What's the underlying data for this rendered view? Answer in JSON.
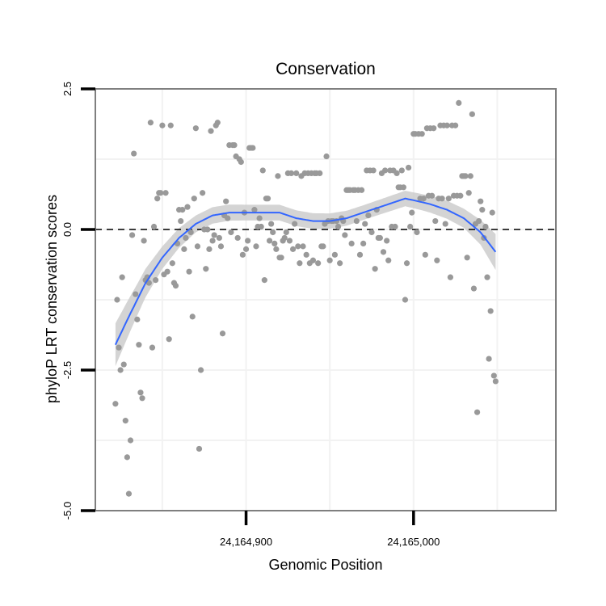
{
  "chart_data": {
    "type": "scatter",
    "title": "Conservation",
    "xlabel": "Genomic Position",
    "ylabel": "phyloP LRT conservation scores",
    "xlim": [
      24164810,
      24165085
    ],
    "ylim": [
      -5.0,
      2.5
    ],
    "xticks": [
      24164900,
      24165000
    ],
    "xtick_labels": [
      "24,164,900",
      "24,165,000"
    ],
    "yticks": [
      2.5,
      0.0,
      -2.5,
      -5.0
    ],
    "ytick_labels": [
      "2.5",
      "0.0",
      "-2.5",
      "-5.0"
    ],
    "grid": true,
    "reference_line": {
      "y": 0.0,
      "style": "dashed"
    },
    "colors": {
      "points": "#999999",
      "smooth": "#3366ff",
      "band": "#cccccc",
      "panel_border": "#7f7f7f"
    },
    "points": [
      [
        24164822,
        -3.1
      ],
      [
        24164823,
        -1.25
      ],
      [
        24164824,
        -2.1
      ],
      [
        24164825,
        -2.5
      ],
      [
        24164826,
        -0.85
      ],
      [
        24164827,
        -2.4
      ],
      [
        24164828,
        -3.4
      ],
      [
        24164829,
        -4.05
      ],
      [
        24164830,
        -4.7
      ],
      [
        24164831,
        -3.75
      ],
      [
        24164832,
        -0.1
      ],
      [
        24164833,
        1.35
      ],
      [
        24164834,
        -1.15
      ],
      [
        24164835,
        -1.6
      ],
      [
        24164836,
        -2.05
      ],
      [
        24164837,
        -2.9
      ],
      [
        24164838,
        -3.0
      ],
      [
        24164839,
        -0.2
      ],
      [
        24164840,
        -0.9
      ],
      [
        24164841,
        -0.85
      ],
      [
        24164842,
        -0.95
      ],
      [
        24164843,
        1.9
      ],
      [
        24164844,
        -2.1
      ],
      [
        24164845,
        0.05
      ],
      [
        24164846,
        -0.9
      ],
      [
        24164847,
        0.55
      ],
      [
        24164848,
        0.65
      ],
      [
        24164849,
        0.65
      ],
      [
        24164850,
        1.85
      ],
      [
        24164851,
        -0.8
      ],
      [
        24164852,
        0.65
      ],
      [
        24164853,
        -0.75
      ],
      [
        24164854,
        -1.95
      ],
      [
        24164855,
        1.85
      ],
      [
        24164856,
        -0.6
      ],
      [
        24164857,
        -0.95
      ],
      [
        24164858,
        -1.0
      ],
      [
        24164859,
        -0.25
      ],
      [
        24164860,
        0.35
      ],
      [
        24164861,
        0.15
      ],
      [
        24164862,
        0.35
      ],
      [
        24164863,
        -0.35
      ],
      [
        24164864,
        -0.15
      ],
      [
        24164865,
        0.4
      ],
      [
        24164866,
        -0.75
      ],
      [
        24164867,
        -0.05
      ],
      [
        24164868,
        -1.55
      ],
      [
        24164869,
        0.55
      ],
      [
        24164870,
        1.8
      ],
      [
        24164871,
        -0.3
      ],
      [
        24164872,
        -3.9
      ],
      [
        24164873,
        -2.5
      ],
      [
        24164874,
        0.65
      ],
      [
        24164875,
        0.0
      ],
      [
        24164876,
        -0.7
      ],
      [
        24164877,
        0.0
      ],
      [
        24164878,
        -0.35
      ],
      [
        24164879,
        1.75
      ],
      [
        24164880,
        -0.2
      ],
      [
        24164881,
        -0.1
      ],
      [
        24164882,
        1.85
      ],
      [
        24164883,
        1.9
      ],
      [
        24164884,
        -0.15
      ],
      [
        24164885,
        -0.3
      ],
      [
        24164886,
        -1.85
      ],
      [
        24164887,
        0.25
      ],
      [
        24164888,
        0.5
      ],
      [
        24164889,
        0.2
      ],
      [
        24164890,
        1.5
      ],
      [
        24164891,
        -0.05
      ],
      [
        24164892,
        1.5
      ],
      [
        24164893,
        1.5
      ],
      [
        24164894,
        1.3
      ],
      [
        24164895,
        -0.15
      ],
      [
        24164896,
        1.25
      ],
      [
        24164897,
        1.2
      ],
      [
        24164898,
        -0.45
      ],
      [
        24164899,
        0.3
      ],
      [
        24164900,
        -0.35
      ],
      [
        24164901,
        -0.2
      ],
      [
        24164902,
        1.45
      ],
      [
        24164903,
        1.45
      ],
      [
        24164904,
        1.45
      ],
      [
        24164905,
        0.35
      ],
      [
        24164906,
        -0.3
      ],
      [
        24164907,
        0.05
      ],
      [
        24164908,
        0.2
      ],
      [
        24164909,
        0.05
      ],
      [
        24164910,
        1.05
      ],
      [
        24164911,
        -0.9
      ],
      [
        24164912,
        0.55
      ],
      [
        24164913,
        0.55
      ],
      [
        24164914,
        -0.2
      ],
      [
        24164915,
        0.1
      ],
      [
        24164916,
        -0.05
      ],
      [
        24164917,
        -0.25
      ],
      [
        24164918,
        -0.35
      ],
      [
        24164919,
        0.95
      ],
      [
        24164920,
        -0.5
      ],
      [
        24164921,
        -0.5
      ],
      [
        24164922,
        -0.2
      ],
      [
        24164923,
        -0.15
      ],
      [
        24164924,
        -0.05
      ],
      [
        24164925,
        1.0
      ],
      [
        24164926,
        -0.2
      ],
      [
        24164927,
        1.0
      ],
      [
        24164928,
        -0.35
      ],
      [
        24164929,
        0.1
      ],
      [
        24164930,
        1.0
      ],
      [
        24164931,
        -0.3
      ],
      [
        24164932,
        -0.6
      ],
      [
        24164933,
        0.95
      ],
      [
        24164934,
        -0.3
      ],
      [
        24164935,
        1.0
      ],
      [
        24164936,
        -0.45
      ],
      [
        24164937,
        1.0
      ],
      [
        24164938,
        -0.6
      ],
      [
        24164939,
        1.0
      ],
      [
        24164940,
        -0.55
      ],
      [
        24164941,
        1.0
      ],
      [
        24164942,
        1.0
      ],
      [
        24164943,
        -0.6
      ],
      [
        24164944,
        1.0
      ],
      [
        24164945,
        -0.3
      ],
      [
        24164946,
        -0.3
      ],
      [
        24164947,
        0.1
      ],
      [
        24164948,
        1.3
      ],
      [
        24164949,
        0.15
      ],
      [
        24164950,
        -0.55
      ],
      [
        24164951,
        0.15
      ],
      [
        24164952,
        0.15
      ],
      [
        24164953,
        -0.45
      ],
      [
        24164954,
        0.15
      ],
      [
        24164955,
        0.05
      ],
      [
        24164956,
        -0.6
      ],
      [
        24164957,
        0.2
      ],
      [
        24164958,
        0.15
      ],
      [
        24164959,
        -0.1
      ],
      [
        24164960,
        0.7
      ],
      [
        24164961,
        0.7
      ],
      [
        24164962,
        0.7
      ],
      [
        24164963,
        -0.25
      ],
      [
        24164964,
        0.7
      ],
      [
        24164965,
        0.7
      ],
      [
        24164966,
        0.15
      ],
      [
        24164967,
        0.7
      ],
      [
        24164968,
        -0.45
      ],
      [
        24164969,
        0.7
      ],
      [
        24164970,
        -0.25
      ],
      [
        24164971,
        0.1
      ],
      [
        24164972,
        1.05
      ],
      [
        24164973,
        0.25
      ],
      [
        24164974,
        1.05
      ],
      [
        24164975,
        -0.05
      ],
      [
        24164976,
        1.05
      ],
      [
        24164977,
        -0.7
      ],
      [
        24164978,
        0.35
      ],
      [
        24164979,
        -0.15
      ],
      [
        24164980,
        -0.15
      ],
      [
        24164981,
        1.0
      ],
      [
        24164982,
        -0.4
      ],
      [
        24164983,
        1.05
      ],
      [
        24164984,
        -0.2
      ],
      [
        24164985,
        -0.55
      ],
      [
        24164986,
        1.05
      ],
      [
        24164987,
        0.05
      ],
      [
        24164988,
        1.05
      ],
      [
        24164989,
        0.05
      ],
      [
        24164990,
        1.0
      ],
      [
        24164991,
        0.75
      ],
      [
        24164992,
        0.75
      ],
      [
        24164993,
        1.05
      ],
      [
        24164994,
        0.75
      ],
      [
        24164995,
        -1.25
      ],
      [
        24164996,
        -0.6
      ],
      [
        24164997,
        1.1
      ],
      [
        24164998,
        0.05
      ],
      [
        24164999,
        0.3
      ],
      [
        24165000,
        1.7
      ],
      [
        24165001,
        1.7
      ],
      [
        24165002,
        -0.05
      ],
      [
        24165003,
        1.7
      ],
      [
        24165004,
        0.55
      ],
      [
        24165005,
        1.7
      ],
      [
        24165006,
        0.55
      ],
      [
        24165007,
        -0.45
      ],
      [
        24165008,
        1.8
      ],
      [
        24165009,
        0.6
      ],
      [
        24165010,
        1.8
      ],
      [
        24165011,
        0.6
      ],
      [
        24165012,
        1.8
      ],
      [
        24165013,
        0.15
      ],
      [
        24165014,
        -0.55
      ],
      [
        24165015,
        0.55
      ],
      [
        24165016,
        1.85
      ],
      [
        24165017,
        0.55
      ],
      [
        24165018,
        1.85
      ],
      [
        24165019,
        0.1
      ],
      [
        24165020,
        1.85
      ],
      [
        24165021,
        0.55
      ],
      [
        24165022,
        -0.85
      ],
      [
        24165023,
        1.85
      ],
      [
        24165024,
        0.6
      ],
      [
        24165025,
        1.85
      ],
      [
        24165026,
        0.6
      ],
      [
        24165027,
        2.25
      ],
      [
        24165028,
        0.6
      ],
      [
        24165029,
        0.95
      ],
      [
        24165030,
        0.95
      ],
      [
        24165031,
        0.95
      ],
      [
        24165032,
        -0.5
      ],
      [
        24165033,
        0.65
      ],
      [
        24165034,
        0.95
      ],
      [
        24165035,
        2.05
      ],
      [
        24165036,
        -1.05
      ],
      [
        24165037,
        0.1
      ],
      [
        24165038,
        -3.25
      ],
      [
        24165039,
        0.15
      ],
      [
        24165040,
        0.5
      ],
      [
        24165041,
        0.35
      ],
      [
        24165042,
        -0.15
      ],
      [
        24165043,
        0.05
      ],
      [
        24165044,
        -0.85
      ],
      [
        24165045,
        -2.3
      ],
      [
        24165046,
        -1.45
      ],
      [
        24165047,
        0.3
      ],
      [
        24165048,
        -2.6
      ],
      [
        24165049,
        -2.7
      ]
    ],
    "smooth": [
      [
        24164822,
        -2.05
      ],
      [
        24164830,
        -1.55
      ],
      [
        24164840,
        -0.95
      ],
      [
        24164850,
        -0.5
      ],
      [
        24164860,
        -0.15
      ],
      [
        24164870,
        0.1
      ],
      [
        24164880,
        0.25
      ],
      [
        24164890,
        0.3
      ],
      [
        24164900,
        0.3
      ],
      [
        24164910,
        0.3
      ],
      [
        24164920,
        0.3
      ],
      [
        24164930,
        0.2
      ],
      [
        24164940,
        0.15
      ],
      [
        24164950,
        0.15
      ],
      [
        24164960,
        0.2
      ],
      [
        24164970,
        0.3
      ],
      [
        24164980,
        0.4
      ],
      [
        24164990,
        0.5
      ],
      [
        24164995,
        0.55
      ],
      [
        24165000,
        0.52
      ],
      [
        24165010,
        0.45
      ],
      [
        24165020,
        0.35
      ],
      [
        24165030,
        0.2
      ],
      [
        24165040,
        -0.05
      ],
      [
        24165049,
        -0.4
      ]
    ],
    "band_width": [
      [
        24164822,
        0.38
      ],
      [
        24164835,
        0.28
      ],
      [
        24164850,
        0.2
      ],
      [
        24164870,
        0.15
      ],
      [
        24164900,
        0.14
      ],
      [
        24164935,
        0.14
      ],
      [
        24164970,
        0.13
      ],
      [
        24165000,
        0.14
      ],
      [
        24165030,
        0.17
      ],
      [
        24165040,
        0.22
      ],
      [
        24165049,
        0.32
      ]
    ]
  }
}
